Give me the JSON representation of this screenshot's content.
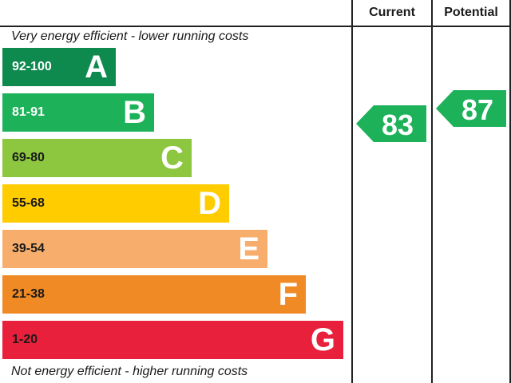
{
  "columns": {
    "current": "Current",
    "potential": "Potential"
  },
  "captions": {
    "top": "Very energy efficient - lower running costs",
    "bottom": "Not energy efficient - higher running costs"
  },
  "chart_data": {
    "type": "bar",
    "categories": [
      "A",
      "B",
      "C",
      "D",
      "E",
      "F",
      "G"
    ],
    "bands": [
      {
        "letter": "A",
        "range": "92-100",
        "color": "#0f8a4f",
        "range_color": "#ffffff"
      },
      {
        "letter": "B",
        "range": "81-91",
        "color": "#1db25a",
        "range_color": "#ffffff"
      },
      {
        "letter": "C",
        "range": "69-80",
        "color": "#8dc63f",
        "range_color": "#1a1a1a"
      },
      {
        "letter": "D",
        "range": "55-68",
        "color": "#ffcc00",
        "range_color": "#1a1a1a"
      },
      {
        "letter": "E",
        "range": "39-54",
        "color": "#f7ae6d",
        "range_color": "#1a1a1a"
      },
      {
        "letter": "F",
        "range": "21-38",
        "color": "#f08a24",
        "range_color": "#1a1a1a"
      },
      {
        "letter": "G",
        "range": "1-20",
        "color": "#e8203c",
        "range_color": "#1a1a1a"
      }
    ],
    "current": {
      "value": 83,
      "label": "83",
      "band": "B",
      "color": "#1db25a"
    },
    "potential": {
      "value": 87,
      "label": "87",
      "band": "B",
      "color": "#1db25a"
    }
  }
}
